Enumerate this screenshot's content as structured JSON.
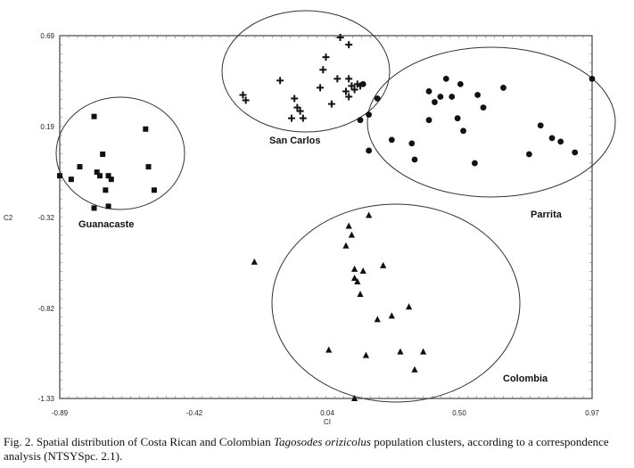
{
  "chart_data": {
    "type": "scatter",
    "title": "",
    "xlabel": "CI",
    "ylabel": "C2",
    "xlim": [
      -0.89,
      0.97
    ],
    "ylim": [
      -1.33,
      0.69
    ],
    "x_ticks": [
      "-0.89",
      "-0.42",
      "0.04",
      "0.50",
      "0.97"
    ],
    "y_ticks": [
      "0.69",
      "0.19",
      "-0.32",
      "-0.82",
      "-1.33"
    ],
    "grid": false,
    "series": [
      {
        "name": "Guanacaste",
        "marker": "square",
        "points": [
          [
            -0.89,
            -0.09
          ],
          [
            -0.85,
            -0.11
          ],
          [
            -0.82,
            -0.04
          ],
          [
            -0.77,
            0.24
          ],
          [
            -0.77,
            -0.27
          ],
          [
            -0.76,
            -0.07
          ],
          [
            -0.75,
            -0.09
          ],
          [
            -0.74,
            0.03
          ],
          [
            -0.73,
            -0.17
          ],
          [
            -0.72,
            -0.09
          ],
          [
            -0.72,
            -0.26
          ],
          [
            -0.71,
            -0.11
          ],
          [
            -0.59,
            0.17
          ],
          [
            -0.58,
            -0.04
          ],
          [
            -0.56,
            -0.17
          ]
        ]
      },
      {
        "name": "San Carlos",
        "marker": "cross",
        "points": [
          [
            -0.25,
            0.36
          ],
          [
            -0.24,
            0.33
          ],
          [
            -0.12,
            0.44
          ],
          [
            -0.08,
            0.23
          ],
          [
            -0.07,
            0.34
          ],
          [
            -0.06,
            0.29
          ],
          [
            -0.05,
            0.27
          ],
          [
            -0.04,
            0.23
          ],
          [
            0.02,
            0.4
          ],
          [
            0.03,
            0.5
          ],
          [
            0.04,
            0.57
          ],
          [
            0.06,
            0.31
          ],
          [
            0.08,
            0.45
          ],
          [
            0.09,
            0.68
          ],
          [
            0.11,
            0.38
          ],
          [
            0.12,
            0.64
          ],
          [
            0.12,
            0.45
          ],
          [
            0.13,
            0.41
          ],
          [
            0.14,
            0.39
          ],
          [
            0.15,
            0.42
          ],
          [
            0.16,
            0.41
          ],
          [
            0.12,
            0.35
          ]
        ]
      },
      {
        "name": "Parrita",
        "marker": "circle",
        "points": [
          [
            0.16,
            0.22
          ],
          [
            0.17,
            0.42
          ],
          [
            0.19,
            0.25
          ],
          [
            0.19,
            0.05
          ],
          [
            0.22,
            0.34
          ],
          [
            0.27,
            0.11
          ],
          [
            0.34,
            0.09
          ],
          [
            0.35,
            -0.0
          ],
          [
            0.4,
            0.22
          ],
          [
            0.4,
            0.38
          ],
          [
            0.42,
            0.32
          ],
          [
            0.44,
            0.35
          ],
          [
            0.46,
            0.45
          ],
          [
            0.48,
            0.35
          ],
          [
            0.5,
            0.23
          ],
          [
            0.51,
            0.42
          ],
          [
            0.52,
            0.16
          ],
          [
            0.56,
            -0.02
          ],
          [
            0.57,
            0.36
          ],
          [
            0.59,
            0.29
          ],
          [
            0.66,
            0.4
          ],
          [
            0.75,
            0.03
          ],
          [
            0.79,
            0.19
          ],
          [
            0.83,
            0.12
          ],
          [
            0.86,
            0.1
          ],
          [
            0.91,
            0.04
          ],
          [
            0.97,
            0.45
          ]
        ]
      },
      {
        "name": "Colombia",
        "marker": "triangle",
        "points": [
          [
            -0.21,
            -0.57
          ],
          [
            0.05,
            -1.06
          ],
          [
            0.11,
            -0.48
          ],
          [
            0.12,
            -0.37
          ],
          [
            0.13,
            -0.42
          ],
          [
            0.14,
            -0.61
          ],
          [
            0.14,
            -0.66
          ],
          [
            0.15,
            -0.68
          ],
          [
            0.16,
            -0.75
          ],
          [
            0.17,
            -0.62
          ],
          [
            0.18,
            -1.09
          ],
          [
            0.19,
            -0.31
          ],
          [
            0.22,
            -0.89
          ],
          [
            0.24,
            -0.59
          ],
          [
            0.27,
            -0.87
          ],
          [
            0.3,
            -1.07
          ],
          [
            0.33,
            -0.82
          ],
          [
            0.35,
            -1.17
          ],
          [
            0.38,
            -1.07
          ],
          [
            0.14,
            -1.33
          ]
        ]
      }
    ],
    "cluster_labels": [
      "Guanacaste",
      "San Carlos",
      "Parrita",
      "Colombia"
    ]
  },
  "caption": {
    "prefix": "Fig. 2. Spatial distribution of Costa Rican and Colombian ",
    "species": "Tagosodes orizicolus",
    "suffix": " population clusters, according to a correspondence analysis (NTSYSpc. 2.1)."
  }
}
